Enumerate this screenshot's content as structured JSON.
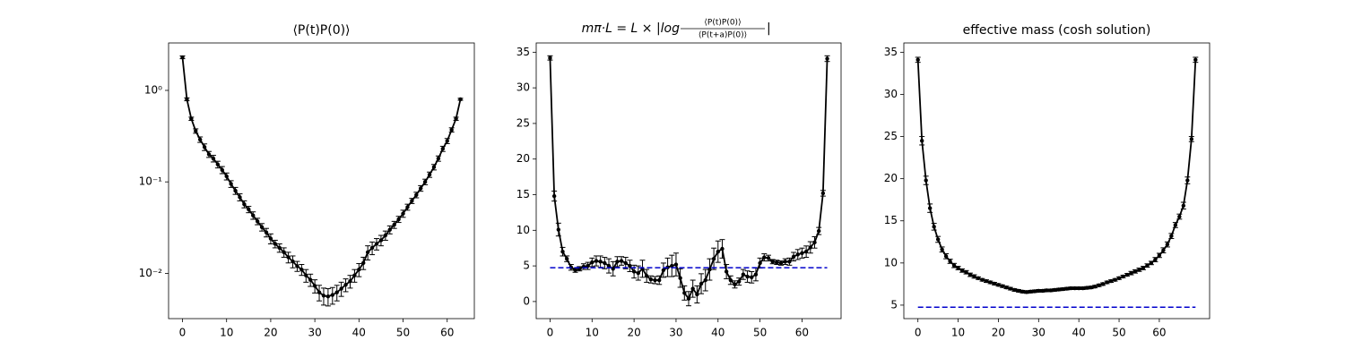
{
  "chart_data": [
    {
      "type": "line",
      "title": "⟨P(t)P(0)⟩",
      "yscale": "log",
      "xlim": [
        -3.15,
        66.15
      ],
      "xticks": [
        0,
        10,
        20,
        30,
        40,
        50,
        60
      ],
      "ylim": [
        0.0032,
        3.3
      ],
      "yticks": [
        {
          "value": 0.01,
          "label": "10⁻²"
        },
        {
          "value": 0.1,
          "label": "10⁻¹"
        },
        {
          "value": 1,
          "label": "10⁰"
        }
      ],
      "series": [
        {
          "color": "#000000",
          "marker": true,
          "x": [
            0,
            1,
            2,
            3,
            4,
            5,
            6,
            7,
            8,
            9,
            10,
            11,
            12,
            13,
            14,
            15,
            16,
            17,
            18,
            19,
            20,
            21,
            22,
            23,
            24,
            25,
            26,
            27,
            28,
            29,
            30,
            31,
            32,
            33,
            34,
            35,
            36,
            37,
            38,
            39,
            40,
            41,
            42,
            43,
            44,
            45,
            46,
            47,
            48,
            49,
            50,
            51,
            52,
            53,
            54,
            55,
            56,
            57,
            58,
            59,
            60,
            61,
            62,
            63
          ],
          "values": [
            2.3,
            0.8,
            0.49,
            0.36,
            0.29,
            0.24,
            0.2,
            0.18,
            0.155,
            0.135,
            0.115,
            0.095,
            0.08,
            0.068,
            0.057,
            0.05,
            0.043,
            0.037,
            0.032,
            0.028,
            0.024,
            0.021,
            0.019,
            0.017,
            0.015,
            0.0135,
            0.012,
            0.011,
            0.0095,
            0.0085,
            0.0073,
            0.0062,
            0.0057,
            0.0056,
            0.0058,
            0.0062,
            0.0068,
            0.0075,
            0.0082,
            0.0095,
            0.011,
            0.013,
            0.017,
            0.019,
            0.021,
            0.023,
            0.026,
            0.03,
            0.034,
            0.039,
            0.045,
            0.053,
            0.062,
            0.072,
            0.085,
            0.1,
            0.12,
            0.145,
            0.18,
            0.23,
            0.28,
            0.37,
            0.49,
            0.8
          ],
          "errors": [
            0.08,
            0.03,
            0.02,
            0.02,
            0.02,
            0.02,
            0.015,
            0.015,
            0.013,
            0.012,
            0.01,
            0.008,
            0.007,
            0.006,
            0.005,
            0.004,
            0.004,
            0.003,
            0.003,
            0.003,
            0.003,
            0.002,
            0.002,
            0.002,
            0.002,
            0.002,
            0.0015,
            0.0015,
            0.0015,
            0.0013,
            0.0012,
            0.0012,
            0.0012,
            0.0012,
            0.0012,
            0.0012,
            0.0012,
            0.0012,
            0.0013,
            0.0015,
            0.0018,
            0.002,
            0.003,
            0.003,
            0.003,
            0.003,
            0.003,
            0.003,
            0.003,
            0.003,
            0.004,
            0.004,
            0.004,
            0.005,
            0.006,
            0.007,
            0.008,
            0.01,
            0.012,
            0.015,
            0.018,
            0.02,
            0.02,
            0.02
          ]
        }
      ]
    },
    {
      "type": "line",
      "title_parts": {
        "lhs": "mπ·L = L × |log",
        "numerator": "⟨P(t)P(0)⟩",
        "denominator": "⟨P(t+a)P(0)⟩",
        "rhs": "|"
      },
      "xlim": [
        -3.3,
        69.3
      ],
      "xticks": [
        0,
        10,
        20,
        30,
        40,
        50,
        60
      ],
      "ylim": [
        -2.4,
        36.3
      ],
      "yticks": [
        0,
        5,
        10,
        15,
        20,
        25,
        30,
        35
      ],
      "series": [
        {
          "color": "#000000",
          "marker": true,
          "x": [
            0,
            1,
            2,
            3,
            4,
            5,
            6,
            7,
            8,
            9,
            10,
            11,
            12,
            13,
            14,
            15,
            16,
            17,
            18,
            19,
            20,
            21,
            22,
            23,
            24,
            25,
            26,
            27,
            28,
            29,
            30,
            31,
            32,
            33,
            34,
            35,
            36,
            37,
            38,
            39,
            40,
            41,
            42,
            43,
            44,
            45,
            46,
            47,
            48,
            49,
            50,
            51,
            52,
            53,
            54,
            55,
            56,
            57,
            58,
            59,
            60,
            61,
            62,
            63,
            64,
            65,
            66
          ],
          "values": [
            34.2,
            14.8,
            10.1,
            7.0,
            6.0,
            4.8,
            4.4,
            4.6,
            4.9,
            5.0,
            5.5,
            5.7,
            5.6,
            5.4,
            5.0,
            4.6,
            5.6,
            5.7,
            5.4,
            5.0,
            4.2,
            4.0,
            4.6,
            3.6,
            3.1,
            3.0,
            3.0,
            4.4,
            4.8,
            5.0,
            5.2,
            3.3,
            1.2,
            0.4,
            1.8,
            1.0,
            2.5,
            3.0,
            4.5,
            6.0,
            7.0,
            7.4,
            4.2,
            3.0,
            2.4,
            2.8,
            3.8,
            3.5,
            3.4,
            3.8,
            5.4,
            6.2,
            6.1,
            5.6,
            5.5,
            5.4,
            5.6,
            5.6,
            6.3,
            6.6,
            6.8,
            7.0,
            7.6,
            8.3,
            9.9,
            15.2,
            34.1
          ],
          "errors": [
            0.3,
            0.7,
            0.9,
            0.6,
            0.4,
            0.4,
            0.3,
            0.3,
            0.4,
            0.5,
            0.6,
            0.7,
            0.8,
            0.8,
            1.0,
            1.0,
            0.7,
            0.6,
            0.8,
            0.8,
            0.9,
            1.0,
            1.2,
            0.9,
            0.5,
            0.5,
            0.6,
            1.0,
            1.3,
            1.5,
            1.6,
            1.3,
            1.0,
            1.0,
            1.2,
            1.2,
            1.4,
            1.5,
            1.5,
            1.5,
            1.5,
            1.3,
            1.0,
            0.6,
            0.5,
            0.5,
            0.7,
            0.8,
            0.8,
            0.9,
            0.7,
            0.5,
            0.4,
            0.3,
            0.3,
            0.3,
            0.4,
            0.5,
            0.6,
            0.7,
            0.7,
            0.8,
            0.8,
            0.8,
            0.5,
            0.4,
            0.4
          ]
        },
        {
          "color": "#0000cc",
          "linestyle": "dashed",
          "x": [
            0,
            66
          ],
          "values": [
            4.75,
            4.75
          ]
        }
      ]
    },
    {
      "type": "line",
      "title": "effective mass (cosh solution)",
      "xlim": [
        -3.5,
        72.5
      ],
      "xticks": [
        0,
        10,
        20,
        30,
        40,
        50,
        60
      ],
      "ylim": [
        3.4,
        36.1
      ],
      "yticks": [
        5,
        10,
        15,
        20,
        25,
        30,
        35
      ],
      "series": [
        {
          "color": "#000000",
          "marker": true,
          "x": [
            0,
            1,
            2,
            3,
            4,
            5,
            6,
            7,
            8,
            9,
            10,
            11,
            12,
            13,
            14,
            15,
            16,
            17,
            18,
            19,
            20,
            21,
            22,
            23,
            24,
            25,
            26,
            27,
            28,
            29,
            30,
            31,
            32,
            33,
            34,
            35,
            36,
            37,
            38,
            39,
            40,
            41,
            42,
            43,
            44,
            45,
            46,
            47,
            48,
            49,
            50,
            51,
            52,
            53,
            54,
            55,
            56,
            57,
            58,
            59,
            60,
            61,
            62,
            63,
            64,
            65,
            66,
            67,
            68,
            69
          ],
          "values": [
            34.1,
            24.5,
            19.8,
            16.5,
            14.3,
            12.8,
            11.6,
            10.8,
            10.2,
            9.7,
            9.4,
            9.1,
            8.9,
            8.6,
            8.4,
            8.2,
            8.0,
            7.85,
            7.7,
            7.55,
            7.4,
            7.25,
            7.1,
            6.95,
            6.8,
            6.7,
            6.6,
            6.55,
            6.6,
            6.65,
            6.7,
            6.7,
            6.75,
            6.75,
            6.8,
            6.85,
            6.9,
            6.95,
            7.0,
            7.0,
            7.0,
            7.0,
            7.05,
            7.1,
            7.2,
            7.35,
            7.5,
            7.7,
            7.85,
            8.0,
            8.2,
            8.4,
            8.6,
            8.8,
            9.0,
            9.2,
            9.4,
            9.7,
            10.0,
            10.4,
            10.9,
            11.5,
            12.2,
            13.2,
            14.5,
            15.5,
            16.8,
            19.8,
            24.7,
            34.1
          ],
          "errors": [
            0.3,
            0.5,
            0.5,
            0.5,
            0.4,
            0.35,
            0.3,
            0.3,
            0.25,
            0.25,
            0.2,
            0.2,
            0.2,
            0.2,
            0.2,
            0.15,
            0.15,
            0.15,
            0.15,
            0.15,
            0.15,
            0.15,
            0.15,
            0.15,
            0.15,
            0.15,
            0.15,
            0.15,
            0.15,
            0.15,
            0.15,
            0.15,
            0.15,
            0.15,
            0.15,
            0.15,
            0.15,
            0.15,
            0.15,
            0.15,
            0.15,
            0.15,
            0.15,
            0.15,
            0.15,
            0.15,
            0.15,
            0.15,
            0.15,
            0.15,
            0.15,
            0.15,
            0.15,
            0.2,
            0.2,
            0.2,
            0.2,
            0.2,
            0.2,
            0.25,
            0.25,
            0.3,
            0.3,
            0.3,
            0.3,
            0.3,
            0.4,
            0.4,
            0.3,
            0.3
          ]
        },
        {
          "color": "#0000cc",
          "linestyle": "dashed",
          "x": [
            0,
            69
          ],
          "values": [
            4.75,
            4.75
          ]
        }
      ]
    }
  ]
}
